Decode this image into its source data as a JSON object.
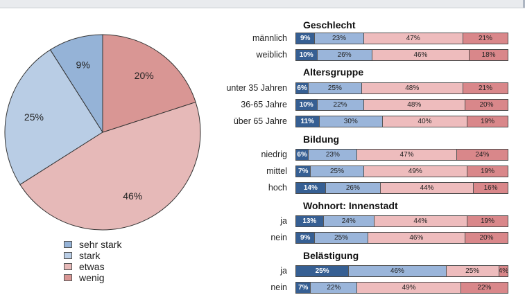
{
  "colors": {
    "sehr_stark": "#365f93",
    "stark": "#9ab5da",
    "etwas": "#eebcbd",
    "wenig": "#d9878a",
    "pie_sehr_stark": "#95b3d7",
    "pie_stark": "#b9cde5",
    "pie_etwas": "#e6b9b8",
    "pie_wenig": "#d99694"
  },
  "chart_data": [
    {
      "type": "pie",
      "title": "",
      "categories": [
        "sehr stark",
        "stark",
        "etwas",
        "wenig"
      ],
      "values": [
        9,
        25,
        46,
        20
      ],
      "labels": [
        "9%",
        "25%",
        "46%",
        "20%"
      ]
    },
    {
      "type": "bar",
      "orientation": "horizontal",
      "stacked": true,
      "series_names": [
        "sehr stark",
        "stark",
        "etwas",
        "wenig"
      ],
      "groups": [
        {
          "title": "Geschlecht",
          "rows": [
            {
              "label": "männlich",
              "values": [
                9,
                23,
                47,
                21
              ]
            },
            {
              "label": "weiblich",
              "values": [
                10,
                26,
                46,
                18
              ]
            }
          ]
        },
        {
          "title": "Altersgruppe",
          "rows": [
            {
              "label": "unter 35 Jahren",
              "values": [
                6,
                25,
                48,
                21
              ]
            },
            {
              "label": "36-65 Jahre",
              "values": [
                10,
                22,
                48,
                20
              ]
            },
            {
              "label": "über 65 Jahre",
              "values": [
                11,
                30,
                40,
                19
              ]
            }
          ]
        },
        {
          "title": "Bildung",
          "rows": [
            {
              "label": "niedrig",
              "values": [
                6,
                23,
                47,
                24
              ]
            },
            {
              "label": "mittel",
              "values": [
                7,
                25,
                49,
                19
              ]
            },
            {
              "label": "hoch",
              "values": [
                14,
                26,
                44,
                16
              ]
            }
          ]
        },
        {
          "title": "Wohnort: Innenstadt",
          "rows": [
            {
              "label": "ja",
              "values": [
                13,
                24,
                44,
                19
              ]
            },
            {
              "label": "nein",
              "values": [
                9,
                25,
                46,
                20
              ]
            }
          ]
        },
        {
          "title": "Belästigung",
          "rows": [
            {
              "label": "ja",
              "values": [
                25,
                46,
                25,
                4
              ]
            },
            {
              "label": "nein",
              "values": [
                7,
                22,
                49,
                22
              ]
            }
          ]
        }
      ]
    }
  ]
}
